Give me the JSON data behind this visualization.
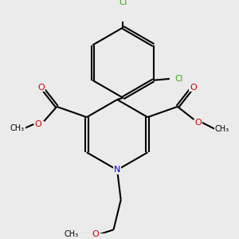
{
  "bg_color": "#ebebeb",
  "line_color": "#000000",
  "N_color": "#0000cc",
  "O_color": "#cc0000",
  "Cl_color": "#33aa00",
  "bond_lw": 1.5,
  "figsize": [
    3.0,
    3.0
  ],
  "dpi": 100,
  "xlim": [
    -1.3,
    1.3
  ],
  "ylim": [
    -1.4,
    1.5
  ]
}
